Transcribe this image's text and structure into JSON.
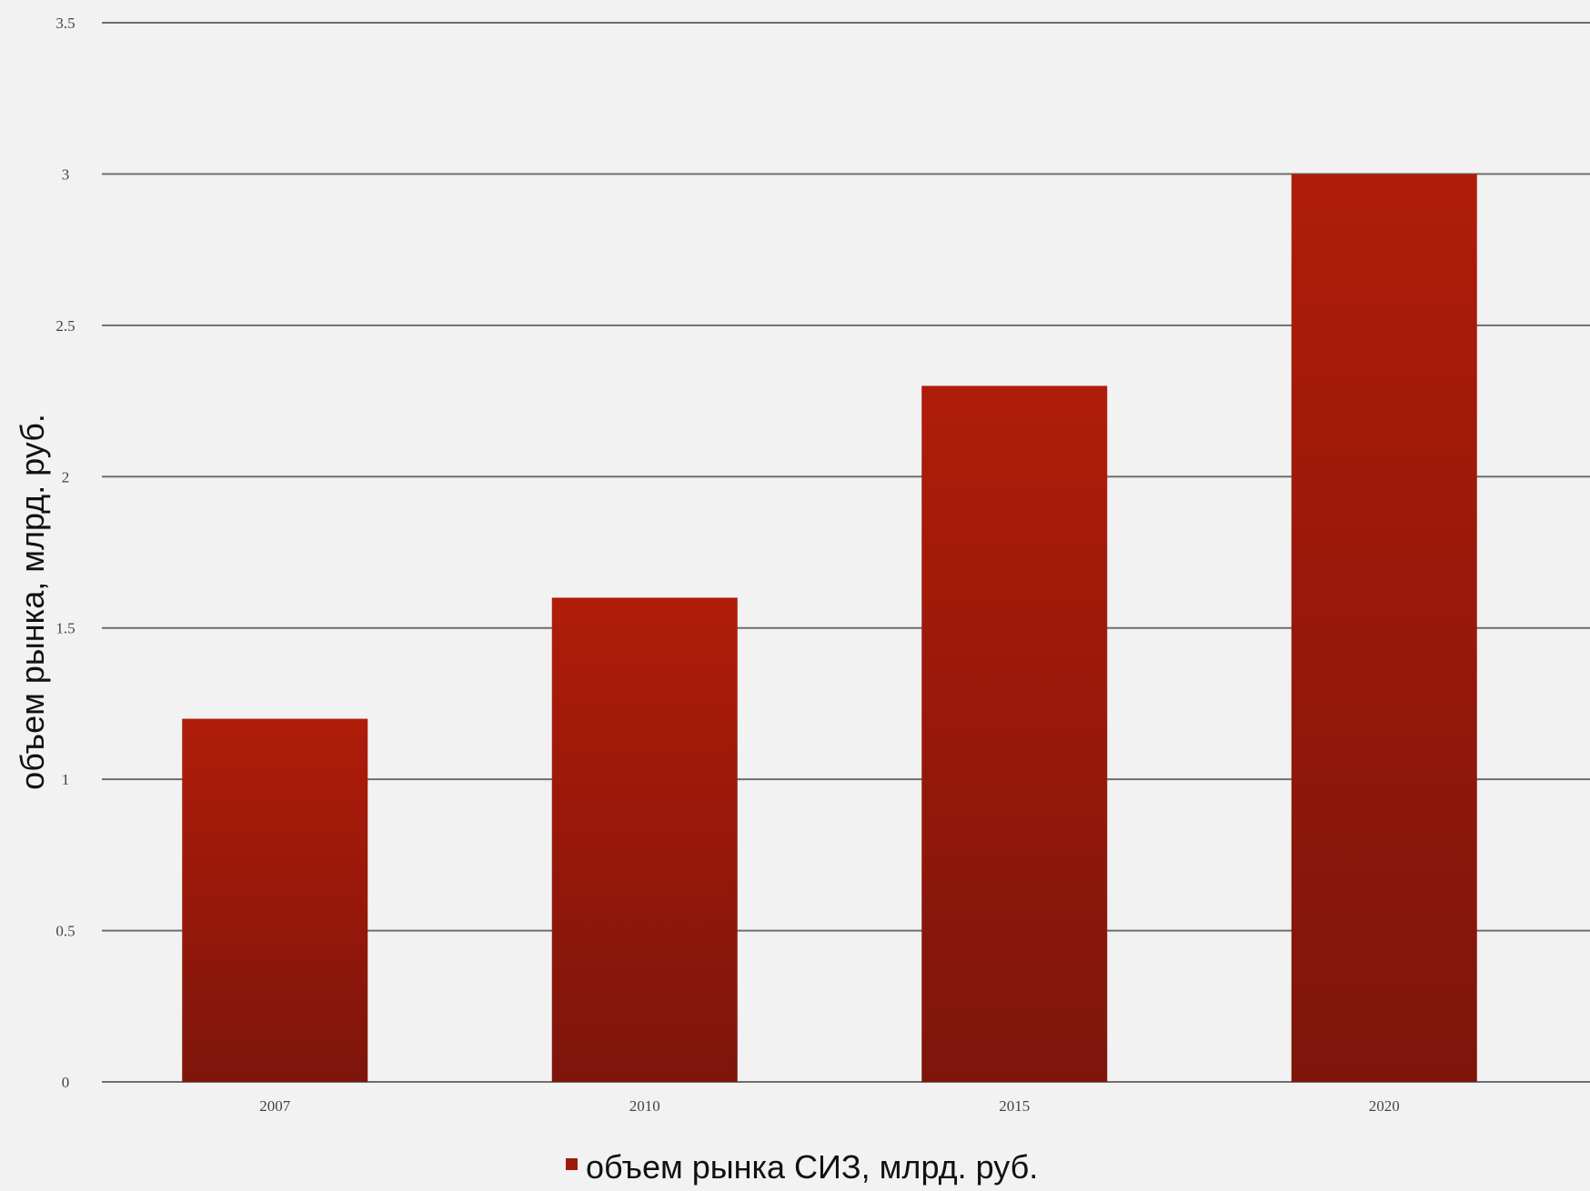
{
  "chart_data": {
    "type": "bar",
    "categories": [
      "2007",
      "2010",
      "2015",
      "2020"
    ],
    "series": [
      {
        "name": "объем рынка СИЗ, млрд. руб.",
        "values": [
          1.2,
          1.6,
          2.3,
          3.0
        ]
      }
    ],
    "ylabel": "объем рынка, млрд. руб.",
    "xlabel": "",
    "ylim": [
      0,
      3.5
    ],
    "yticks": [
      0,
      0.5,
      1,
      1.5,
      2,
      2.5,
      3,
      3.5
    ],
    "ytick_labels": [
      "0",
      "0.5",
      "1",
      "1.5",
      "2",
      "2.5",
      "3",
      "3.5"
    ],
    "grid": true,
    "legend_position": "bottom-center",
    "colors": {
      "bar_top": "#b01c0a",
      "bar_bottom": "#7e150b",
      "grid": "#6e6e6e",
      "background": "#f2f2f2",
      "legend_marker": "#9f1a0c"
    }
  }
}
